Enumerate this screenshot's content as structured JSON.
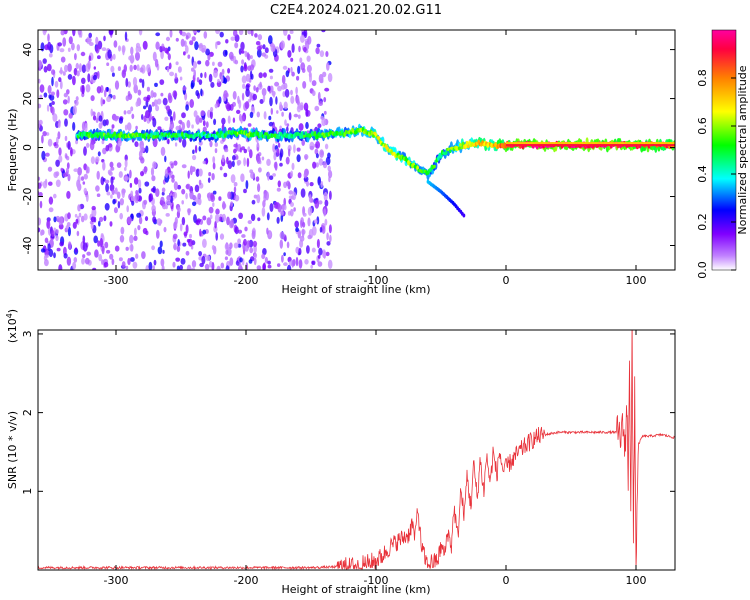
{
  "chart_data": [
    {
      "type": "heatmap",
      "title": "C2E4.2024.021.20.02.G11",
      "xlabel": "Height of straight line (km)",
      "ylabel": "Frequency (Hz)",
      "xlim": [
        -360,
        130
      ],
      "ylim": [
        -50,
        48
      ],
      "x_ticks": [
        -300,
        -200,
        -100,
        0,
        100
      ],
      "x_tick_labels": [
        "-300",
        "-200",
        "-100",
        "0",
        "100"
      ],
      "y_ticks": [
        -40,
        -20,
        0,
        20,
        40
      ],
      "y_tick_labels": [
        "-40",
        "-20",
        "0",
        "20",
        "40"
      ],
      "colorbar": {
        "label": "Normalized spectral amplitude",
        "range": [
          0,
          1
        ],
        "ticks": [
          0,
          0.2,
          0.4,
          0.6,
          0.8
        ],
        "tick_labels": [
          "0.0",
          "0.2",
          "0.4",
          "0.6",
          "0.8"
        ],
        "colormap": [
          "#ffffff",
          "#8000ff",
          "#0000ff",
          "#00ffff",
          "#00ff00",
          "#ffff00",
          "#ff8000",
          "#ff0040"
        ]
      },
      "ridge": [
        {
          "x": -330,
          "f": 5,
          "a": 0.45
        },
        {
          "x": -310,
          "f": 5,
          "a": 0.5
        },
        {
          "x": -290,
          "f": 5,
          "a": 0.5
        },
        {
          "x": -270,
          "f": 5,
          "a": 0.45
        },
        {
          "x": -250,
          "f": 5,
          "a": 0.45
        },
        {
          "x": -225,
          "f": 5,
          "a": 0.4
        },
        {
          "x": -205,
          "f": 6,
          "a": 0.55
        },
        {
          "x": -185,
          "f": 5,
          "a": 0.45
        },
        {
          "x": -165,
          "f": 5,
          "a": 0.45
        },
        {
          "x": -145,
          "f": 5,
          "a": 0.5
        },
        {
          "x": -125,
          "f": 6,
          "a": 0.5
        },
        {
          "x": -110,
          "f": 7,
          "a": 0.55
        },
        {
          "x": -100,
          "f": 5,
          "a": 0.6
        },
        {
          "x": -95,
          "f": 2,
          "a": 0.6
        },
        {
          "x": -88,
          "f": -2,
          "a": 0.6
        },
        {
          "x": -80,
          "f": -4,
          "a": 0.55
        },
        {
          "x": -70,
          "f": -8,
          "a": 0.55
        },
        {
          "x": -60,
          "f": -11,
          "a": 0.5
        },
        {
          "x": -50,
          "f": -3,
          "a": 0.45
        },
        {
          "x": -40,
          "f": 0,
          "a": 0.55
        },
        {
          "x": -30,
          "f": 1,
          "a": 0.6
        },
        {
          "x": -20,
          "f": 2,
          "a": 0.7
        },
        {
          "x": -10,
          "f": 1,
          "a": 0.7
        },
        {
          "x": 0,
          "f": 1,
          "a": 0.85
        },
        {
          "x": 25,
          "f": 1,
          "a": 0.95
        },
        {
          "x": 50,
          "f": 1,
          "a": 0.95
        },
        {
          "x": 75,
          "f": 1,
          "a": 0.9
        },
        {
          "x": 95,
          "f": 1,
          "a": 0.9
        },
        {
          "x": 110,
          "f": 1,
          "a": 0.85
        },
        {
          "x": 130,
          "f": 1,
          "a": 0.8
        }
      ],
      "side_branch": [
        {
          "x": -60,
          "f": -14,
          "a": 0.35
        },
        {
          "x": -50,
          "f": -18,
          "a": 0.3
        },
        {
          "x": -40,
          "f": -23,
          "a": 0.25
        },
        {
          "x": -32,
          "f": -28,
          "a": 0.2
        }
      ]
    },
    {
      "type": "line",
      "title": "",
      "xlabel": "Height of straight line (km)",
      "ylabel": "SNR (10 * v/v)",
      "y_multiplier_label": "(x10",
      "y_multiplier_exp": "4",
      "xlim": [
        -360,
        130
      ],
      "ylim": [
        0,
        3.05
      ],
      "x_ticks": [
        -300,
        -200,
        -100,
        0,
        100
      ],
      "x_tick_labels": [
        "-300",
        "-200",
        "-100",
        "0",
        "100"
      ],
      "y_ticks": [
        1,
        2,
        3
      ],
      "y_tick_labels": [
        "1",
        "2",
        "3"
      ],
      "color": "#e8323a",
      "series": [
        {
          "x": [
            -360,
            -300,
            -250,
            -200,
            -150,
            -130,
            -120,
            -110,
            -100,
            -95,
            -90,
            -85,
            -80,
            -75,
            -72,
            -70,
            -68,
            -65,
            -62,
            -60,
            -57,
            -55,
            -52,
            -50,
            -47,
            -45,
            -42,
            -40,
            -37,
            -35,
            -32,
            -30,
            -27,
            -25,
            -22,
            -20,
            -17,
            -15,
            -12,
            -10,
            -7,
            -5,
            -2,
            0,
            5,
            10,
            15,
            20,
            25,
            30,
            40,
            50,
            60,
            70,
            80,
            85,
            88,
            90,
            92,
            93,
            94,
            95,
            96,
            97,
            98,
            99,
            100,
            102,
            105,
            110,
            120,
            130
          ],
          "y": [
            0.03,
            0.03,
            0.03,
            0.03,
            0.03,
            0.04,
            0.05,
            0.07,
            0.12,
            0.18,
            0.28,
            0.35,
            0.4,
            0.45,
            0.6,
            0.38,
            0.8,
            0.3,
            0.12,
            0.08,
            0.1,
            0.1,
            0.15,
            0.3,
            0.2,
            0.5,
            0.3,
            0.8,
            0.4,
            1.0,
            0.7,
            1.2,
            0.8,
            1.35,
            0.9,
            1.4,
            1.0,
            1.45,
            1.1,
            1.5,
            1.2,
            1.5,
            1.25,
            1.3,
            1.4,
            1.5,
            1.58,
            1.65,
            1.7,
            1.72,
            1.75,
            1.75,
            1.75,
            1.75,
            1.75,
            1.75,
            1.7,
            1.8,
            1.6,
            2.1,
            1.2,
            2.8,
            0.6,
            3.05,
            0.3,
            2.4,
            0.1,
            1.6,
            1.7,
            1.7,
            1.72,
            1.68
          ]
        }
      ]
    }
  ]
}
